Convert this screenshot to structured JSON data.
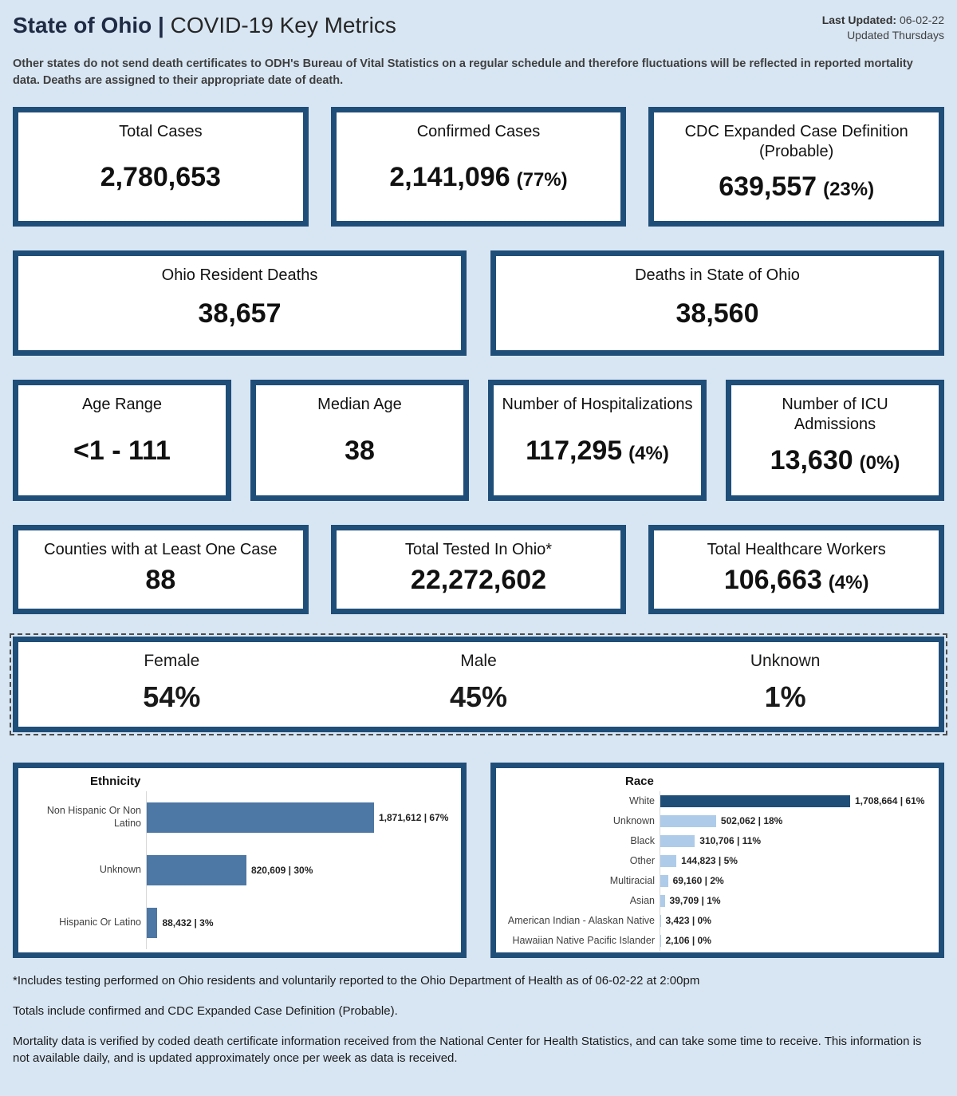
{
  "colors": {
    "background": "#d8e6f3",
    "card_border": "#1f4e79",
    "ethnicity_bar": "#4d77a4",
    "race_bar_highlight": "#1f4e79",
    "race_bar": "#aecce9"
  },
  "header": {
    "title_bold": "State of Ohio",
    "title_sep": "|",
    "title_rest": "COVID-19 Key Metrics",
    "last_updated_label": "Last Updated:",
    "last_updated_value": "06-02-22",
    "updated_note": "Updated Thursdays",
    "disclaimer": "Other states do not send death certificates to ODH's Bureau of Vital Statistics on a regular schedule and therefore fluctuations will be reflected in reported mortality data. Deaths are assigned to their appropriate date of death."
  },
  "metrics": {
    "total_cases": {
      "label": "Total Cases",
      "value": "2,780,653"
    },
    "confirmed_cases": {
      "label": "Confirmed Cases",
      "value": "2,141,096",
      "pct": "(77%)"
    },
    "cdc_expanded": {
      "label": "CDC Expanded Case Definition (Probable)",
      "value": "639,557",
      "pct": "(23%)"
    },
    "ohio_resident_deaths": {
      "label": "Ohio Resident Deaths",
      "value": "38,657"
    },
    "deaths_in_state": {
      "label": "Deaths in State of Ohio",
      "value": "38,560"
    },
    "age_range": {
      "label": "Age Range",
      "value": "<1 - 111"
    },
    "median_age": {
      "label": "Median Age",
      "value": "38"
    },
    "hospitalizations": {
      "label": "Number of Hospitalizations",
      "value": "117,295",
      "pct": "(4%)"
    },
    "icu_admissions": {
      "label": "Number of ICU Admissions",
      "value": "13,630",
      "pct": "(0%)"
    },
    "counties": {
      "label": "Counties with at Least One Case",
      "value": "88"
    },
    "total_tested": {
      "label": "Total Tested In Ohio*",
      "value": "22,272,602"
    },
    "healthcare_workers": {
      "label": "Total Healthcare Workers",
      "value": "106,663",
      "pct": "(4%)"
    }
  },
  "gender": {
    "items": [
      {
        "label": "Female",
        "value": "54%"
      },
      {
        "label": "Male",
        "value": "45%"
      },
      {
        "label": "Unknown",
        "value": "1%"
      }
    ]
  },
  "chart_data": [
    {
      "type": "bar",
      "orientation": "horizontal",
      "title": "Ethnicity",
      "categories": [
        "Non Hispanic Or Non Latino",
        "Unknown",
        "Hispanic Or Latino"
      ],
      "values": [
        1871612,
        820609,
        88432
      ],
      "labels": [
        "1,871,612 | 67%",
        "820,609 | 30%",
        "88,432 | 3%"
      ],
      "bar_color": "#4d77a4",
      "xlabel": "",
      "ylabel": "",
      "grid": false,
      "legend": false
    },
    {
      "type": "bar",
      "orientation": "horizontal",
      "title": "Race",
      "categories": [
        "White",
        "Unknown",
        "Black",
        "Other",
        "Multiracial",
        "Asian",
        "American Indian - Alaskan Native",
        "Hawaiian Native Pacific Islander"
      ],
      "values": [
        1708664,
        502062,
        310706,
        144823,
        69160,
        39709,
        3423,
        2106
      ],
      "labels": [
        "1,708,664 | 61%",
        "502,062 | 18%",
        "310,706 | 11%",
        "144,823 | 5%",
        "69,160 | 2%",
        "39,709 | 1%",
        "3,423 | 0%",
        "2,106 | 0%"
      ],
      "bar_colors": [
        "#1f4e79",
        "#aecce9",
        "#aecce9",
        "#aecce9",
        "#aecce9",
        "#aecce9",
        "#aecce9",
        "#aecce9"
      ],
      "xlabel": "",
      "ylabel": "",
      "grid": false,
      "legend": false
    }
  ],
  "footnotes": {
    "note1": "*Includes testing performed on Ohio residents and voluntarily reported to the Ohio Department of Health as of 06-02-22 at 2:00pm",
    "note2": "Totals include confirmed and CDC Expanded Case Definition (Probable).",
    "note3": "Mortality data is verified by coded death certificate information received from the National Center for Health Statistics, and can take some time to receive. This information is not available daily, and is updated approximately once per week as data is received."
  }
}
